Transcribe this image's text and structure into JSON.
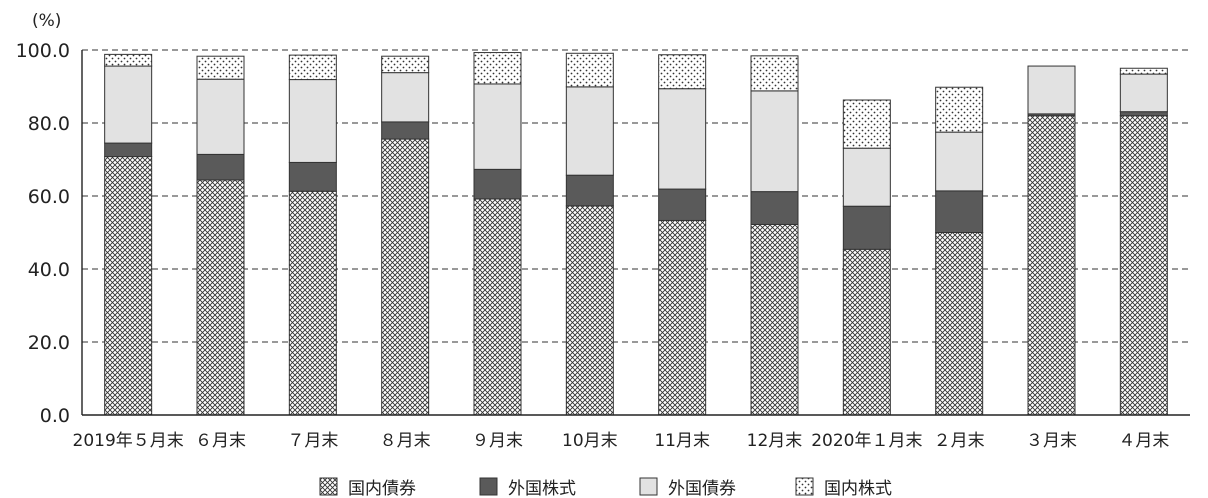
{
  "chart_data": {
    "type": "bar",
    "stacked": true,
    "y_unit_label": "(%)",
    "ylim": [
      0,
      100
    ],
    "yticks": [
      "0.0",
      "20.0",
      "40.0",
      "60.0",
      "80.0",
      "100.0"
    ],
    "grid": "horizontal dashed",
    "legend_position": "bottom",
    "categories": [
      "2019年５月末",
      "６月末",
      "７月末",
      "８月末",
      "９月末",
      "10月末",
      "11月末",
      "12月末",
      "2020年１月末",
      "２月末",
      "３月末",
      "４月末"
    ],
    "series": [
      {
        "name": "国内債券",
        "fill": "crosshatch",
        "values": [
          70.8,
          64.4,
          61.3,
          75.6,
          59.2,
          57.3,
          53.3,
          52.2,
          45.4,
          50.0,
          82.0,
          82.0
        ]
      },
      {
        "name": "外国株式",
        "fill": "solid-dark",
        "values": [
          3.7,
          7.0,
          7.9,
          4.7,
          8.1,
          8.4,
          8.6,
          9.0,
          11.8,
          11.4,
          0.5,
          1.1
        ]
      },
      {
        "name": "外国債券",
        "fill": "solid-light",
        "values": [
          21.1,
          20.6,
          22.7,
          13.5,
          23.4,
          24.2,
          27.5,
          27.6,
          15.9,
          16.1,
          13.1,
          10.3
        ]
      },
      {
        "name": "国内株式",
        "fill": "dots",
        "values": [
          3.2,
          6.3,
          6.7,
          4.5,
          8.6,
          9.2,
          9.3,
          9.6,
          13.2,
          12.3,
          0.0,
          1.6
        ]
      }
    ]
  },
  "colors": {
    "dark": "#5a5a5a",
    "light": "#e2e2e2",
    "outline": "#333333",
    "grid": "#333333"
  }
}
